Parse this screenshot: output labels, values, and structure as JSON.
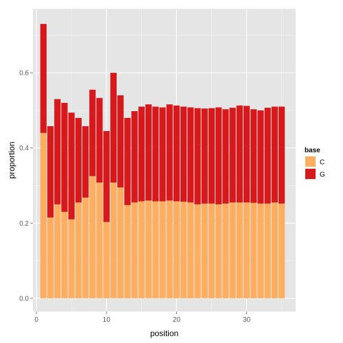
{
  "chart_data": {
    "type": "bar",
    "stacked": true,
    "x": [
      1,
      2,
      3,
      4,
      5,
      6,
      7,
      8,
      9,
      10,
      11,
      12,
      13,
      14,
      15,
      16,
      17,
      18,
      19,
      20,
      21,
      22,
      23,
      24,
      25,
      26,
      27,
      28,
      29,
      30,
      31,
      32,
      33,
      34,
      35
    ],
    "series": [
      {
        "name": "C",
        "color": "#FDAE61",
        "values": [
          0.44,
          0.215,
          0.25,
          0.23,
          0.21,
          0.255,
          0.268,
          0.325,
          0.308,
          0.203,
          0.308,
          0.295,
          0.248,
          0.255,
          0.258,
          0.26,
          0.258,
          0.258,
          0.26,
          0.258,
          0.257,
          0.255,
          0.25,
          0.252,
          0.252,
          0.25,
          0.252,
          0.255,
          0.255,
          0.255,
          0.254,
          0.252,
          0.252,
          0.255,
          0.252
        ]
      },
      {
        "name": "G",
        "color": "#D7191C",
        "values": [
          0.29,
          0.243,
          0.28,
          0.29,
          0.284,
          0.225,
          0.19,
          0.23,
          0.225,
          0.242,
          0.292,
          0.245,
          0.232,
          0.243,
          0.252,
          0.256,
          0.252,
          0.25,
          0.256,
          0.255,
          0.253,
          0.253,
          0.256,
          0.253,
          0.254,
          0.258,
          0.251,
          0.252,
          0.258,
          0.257,
          0.249,
          0.248,
          0.255,
          0.255,
          0.258
        ]
      }
    ],
    "xlabel": "position",
    "ylabel": "proportion",
    "xlim": [
      -0.5,
      37
    ],
    "ylim": [
      -0.035,
      0.77
    ],
    "xticks": [
      0,
      10,
      20,
      30
    ],
    "yticks": [
      0.0,
      0.2,
      0.4,
      0.6
    ],
    "ytick_labels": [
      "0.0",
      "0.2",
      "0.4",
      "0.6"
    ],
    "grid": true,
    "legend": {
      "title": "base",
      "placement": "right",
      "entries": [
        "C",
        "G"
      ]
    },
    "background_color": "#E5E5E5",
    "grid_color": "#FFFFFF"
  }
}
